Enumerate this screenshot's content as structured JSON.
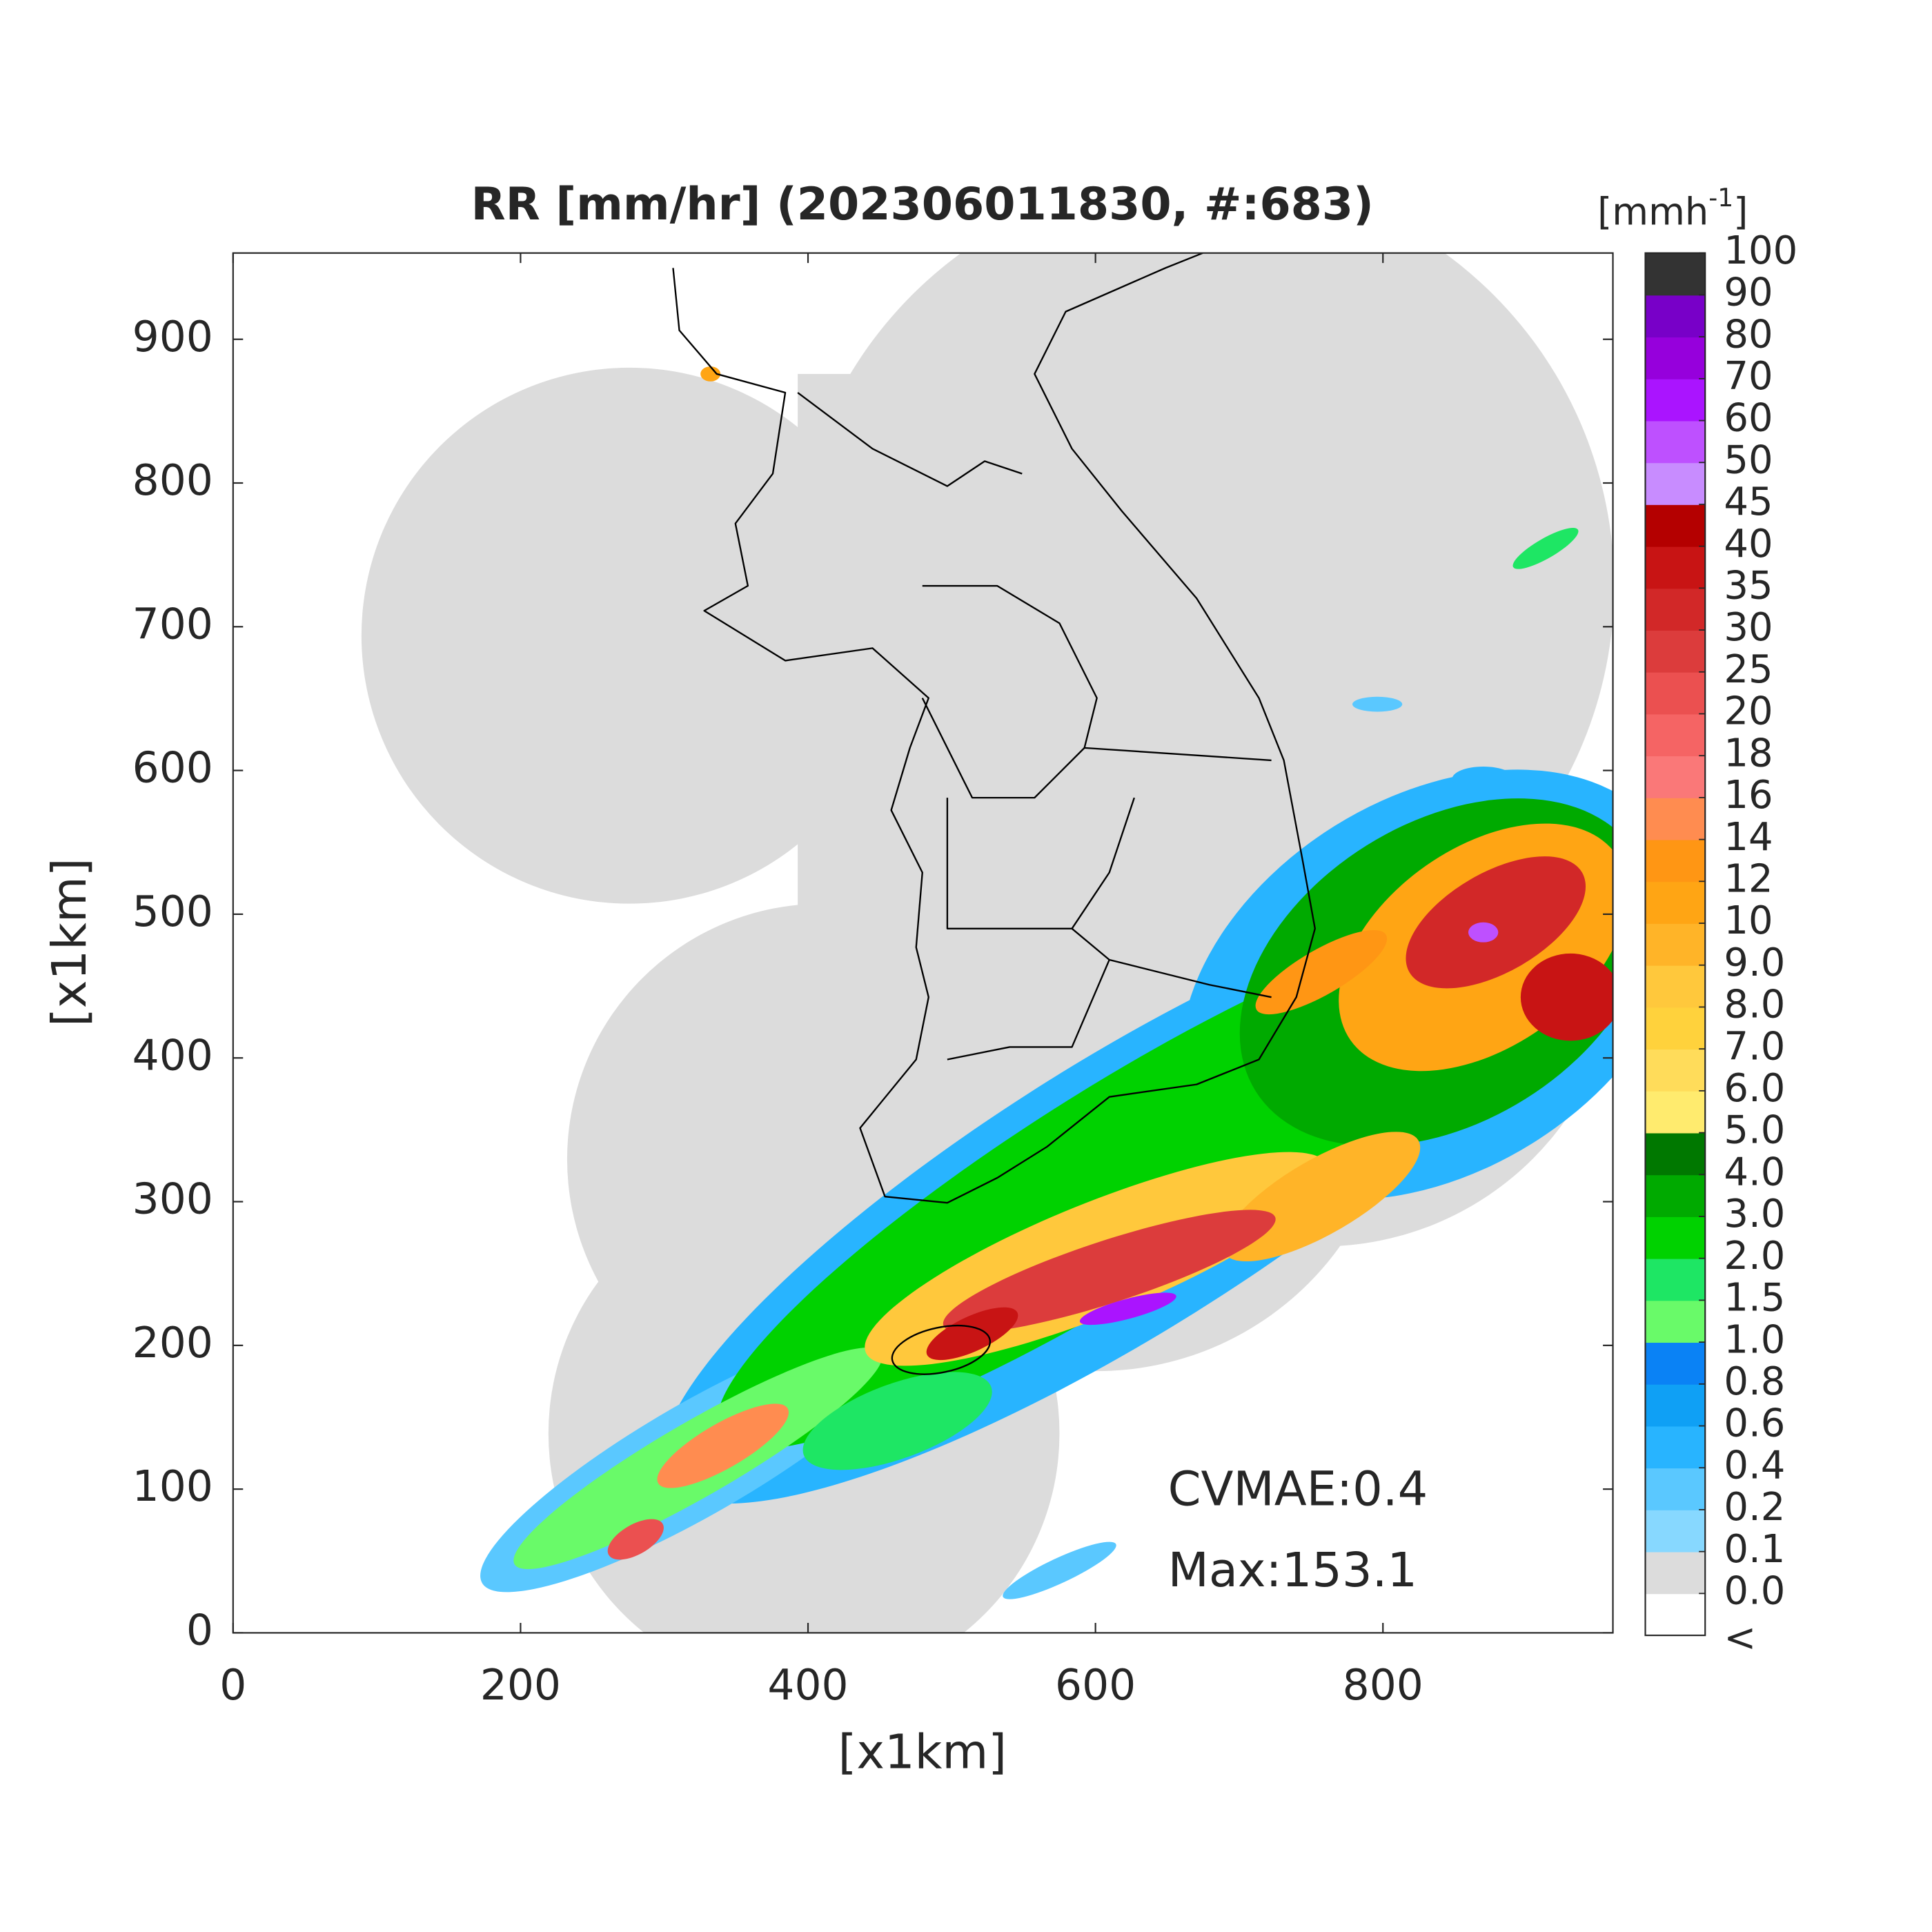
{
  "chart_data": {
    "type": "map",
    "title": "RR [mm/hr] (202306011830, #:683)",
    "xlabel": "[x1km]",
    "ylabel": "[x1km]",
    "xlim": [
      0,
      960
    ],
    "ylim": [
      0,
      960
    ],
    "xticks": [
      0,
      200,
      400,
      600,
      800
    ],
    "yticks": [
      0,
      100,
      200,
      300,
      400,
      500,
      600,
      700,
      800,
      900
    ],
    "annotations": [
      "CVMAE:0.4",
      "Max:153.1"
    ],
    "colorbar": {
      "title_parts": [
        "[mmh",
        "-1",
        "]"
      ],
      "under_label": "<",
      "under_color": "#ffffff",
      "ticks": [
        {
          "value": 0,
          "label": "0.0"
        },
        0.1,
        0.2,
        0.4,
        0.6,
        0.8,
        {
          "value": 1,
          "label": "1.0"
        },
        1.5,
        {
          "value": 2,
          "label": "2.0"
        },
        {
          "value": 3,
          "label": "3.0"
        },
        {
          "value": 4,
          "label": "4.0"
        },
        {
          "value": 5,
          "label": "5.0"
        },
        {
          "value": 6,
          "label": "6.0"
        },
        {
          "value": 7,
          "label": "7.0"
        },
        {
          "value": 8,
          "label": "8.0"
        },
        {
          "value": 9,
          "label": "9.0"
        },
        10,
        12,
        14,
        16,
        18,
        20,
        25,
        30,
        35,
        40,
        45,
        50,
        60,
        70,
        80,
        90,
        100
      ],
      "colors": [
        "#dcdcdc",
        "#87d8ff",
        "#5ac8ff",
        "#28b4ff",
        "#0fa0f5",
        "#0a82f5",
        "#69fa69",
        "#1ee664",
        "#00d200",
        "#00aa00",
        "#007800",
        "#ffeb6e",
        "#ffdc5a",
        "#ffd23c",
        "#ffc83c",
        "#ffb428",
        "#ffa514",
        "#ff9614",
        "#ff8c50",
        "#fa7878",
        "#f56464",
        "#eb5050",
        "#dc3c3c",
        "#d22828",
        "#c81414",
        "#b40000",
        "#c88cff",
        "#be50ff",
        "#aa14ff",
        "#9600dc",
        "#7800c8",
        "#333333"
      ]
    }
  }
}
